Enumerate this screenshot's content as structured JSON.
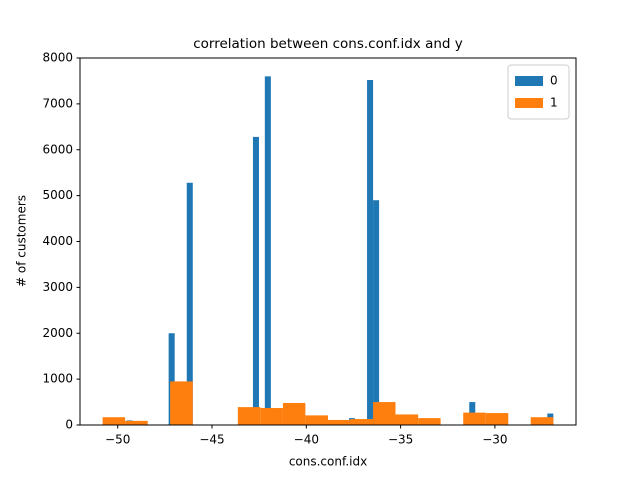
{
  "chart_data": {
    "type": "histogram",
    "title": "correlation between cons.conf.idx and y",
    "x_label": "cons.conf.idx",
    "y_label": "# of customers",
    "xlim": [
      -52.0,
      -25.7
    ],
    "ylim": [
      0,
      8000
    ],
    "xticks": [
      {
        "value": -50,
        "label": "−50"
      },
      {
        "value": -45,
        "label": "−45"
      },
      {
        "value": -40,
        "label": "−40"
      },
      {
        "value": -35,
        "label": "−35"
      },
      {
        "value": -30,
        "label": "−30"
      }
    ],
    "yticks": [
      0,
      1000,
      2000,
      3000,
      4000,
      5000,
      6000,
      7000,
      8000
    ],
    "legend": "upper right",
    "series": [
      {
        "name": "0",
        "color": "#1f77b4",
        "bins": [
          -50.8,
          -50.48,
          -50.16,
          -49.84,
          -49.53,
          -49.21,
          -48.89,
          -48.57,
          -48.25,
          -47.93,
          -47.61,
          -47.3,
          -46.98,
          -46.66,
          -46.34,
          -46.02,
          -45.7,
          -45.38,
          -45.06,
          -44.75,
          -44.43,
          -44.11,
          -43.79,
          -43.47,
          -43.15,
          -42.83,
          -42.51,
          -42.2,
          -41.88,
          -41.56,
          -41.24,
          -40.92,
          -40.6,
          -40.28,
          -39.96,
          -39.65,
          -39.33,
          -39.01,
          -38.69,
          -38.37,
          -38.05,
          -37.73,
          -37.42,
          -37.1,
          -36.78,
          -36.46,
          -36.14,
          -35.82,
          -35.5,
          -35.18,
          -34.87,
          -34.55,
          -34.23,
          -33.91,
          -33.59,
          -33.27,
          -32.95,
          -32.64,
          -32.32,
          -32.0,
          -31.68,
          -31.36,
          -31.04,
          -30.72,
          -30.4,
          -30.09,
          -29.77,
          -29.45,
          -29.13,
          -28.81,
          -28.49,
          -28.17,
          -27.86,
          -27.54,
          -27.22,
          -26.9
        ],
        "values": [
          0,
          0,
          0,
          0,
          100,
          0,
          0,
          0,
          0,
          0,
          0,
          2000,
          0,
          0,
          5280,
          0,
          0,
          0,
          0,
          0,
          0,
          0,
          0,
          0,
          0,
          6280,
          0,
          7600,
          0,
          0,
          0,
          0,
          0,
          0,
          0,
          0,
          0,
          0,
          0,
          0,
          0,
          150,
          0,
          0,
          7520,
          4900,
          0,
          0,
          0,
          0,
          0,
          0,
          0,
          0,
          0,
          0,
          0,
          0,
          0,
          0,
          0,
          500,
          0,
          0,
          0,
          0,
          0,
          0,
          0,
          0,
          0,
          0,
          0,
          0,
          250
        ]
      },
      {
        "name": "1",
        "color": "#ff7f0e",
        "bins": [
          -50.8,
          -49.61,
          -48.41,
          -47.22,
          -46.02,
          -44.83,
          -43.63,
          -42.44,
          -41.24,
          -40.05,
          -38.85,
          -37.66,
          -36.46,
          -35.27,
          -34.07,
          -32.88,
          -31.68,
          -30.49,
          -29.29,
          -28.1,
          -26.9
        ],
        "values": [
          170,
          90,
          0,
          950,
          0,
          0,
          390,
          370,
          480,
          210,
          110,
          130,
          500,
          230,
          150,
          0,
          270,
          260,
          0,
          170
        ]
      }
    ]
  }
}
